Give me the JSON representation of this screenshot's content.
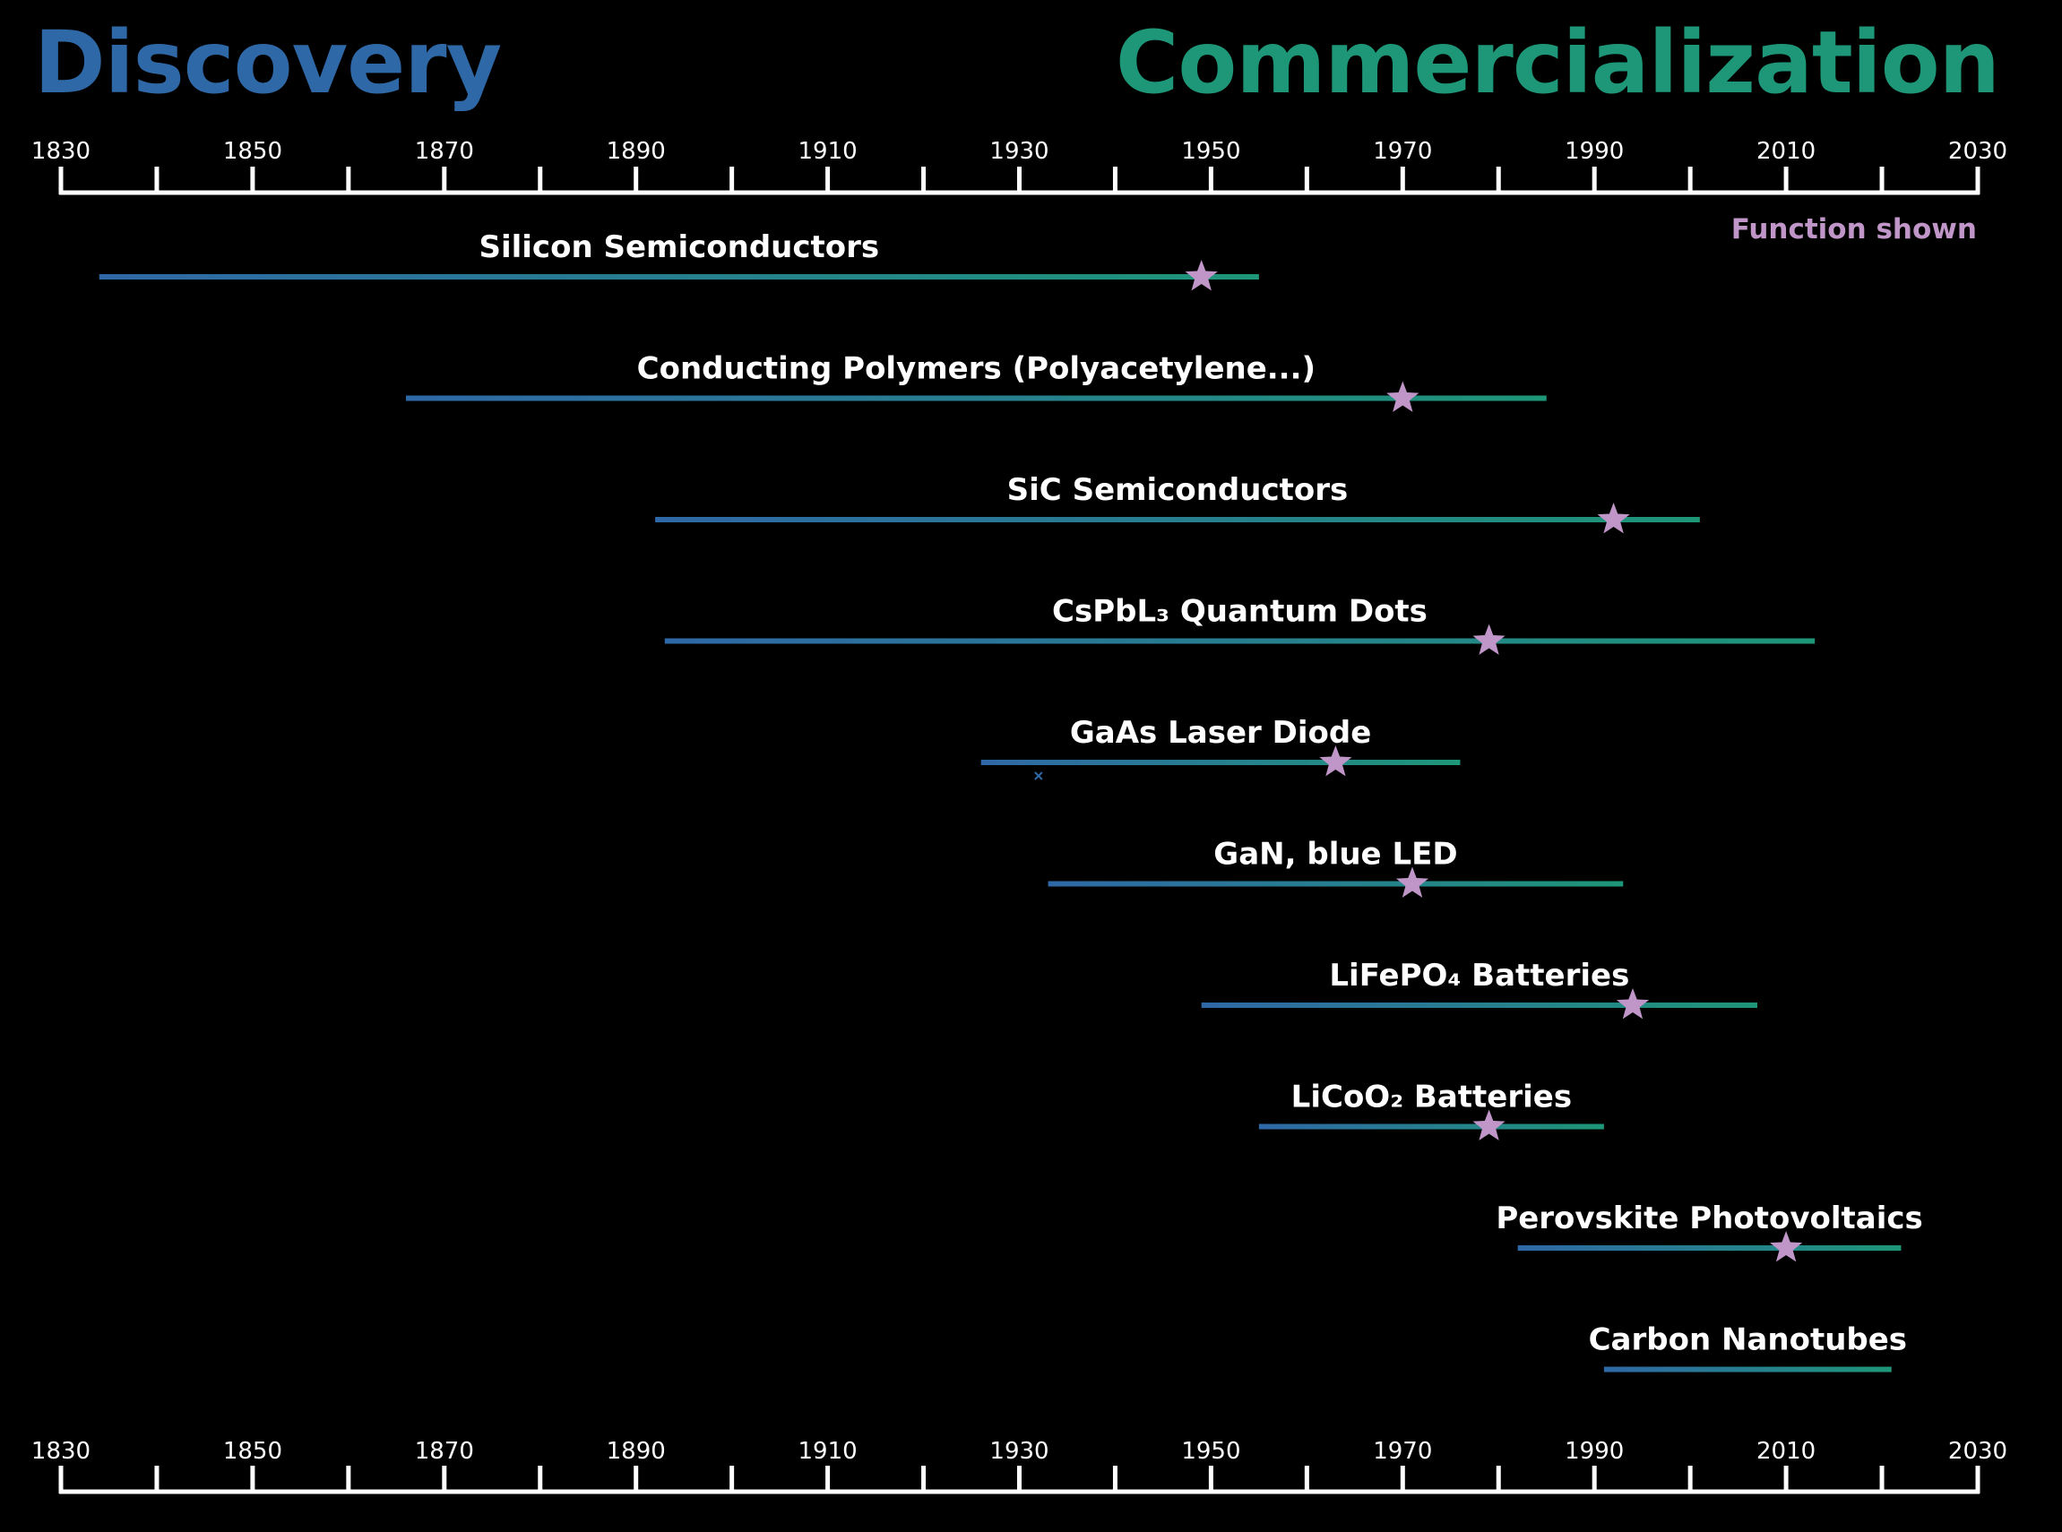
{
  "header": {
    "left_title": "Discovery",
    "right_title": "Commercialization"
  },
  "legend": {
    "function_label": "Function shown"
  },
  "colors": {
    "discovery": "#2f68a6",
    "commercialization": "#1e9678",
    "star": "#c096c8",
    "text": "#ffffff",
    "axis": "#ffffff"
  },
  "chart_data": {
    "type": "timeline",
    "xlim": [
      1830,
      2030
    ],
    "tick_labels": [
      "1830",
      "1850",
      "1870",
      "1890",
      "1910",
      "1930",
      "1950",
      "1970",
      "1990",
      "2010",
      "2030"
    ],
    "minor_ticks": [
      1840,
      1860,
      1880,
      1900,
      1920,
      1940,
      1960,
      1980,
      2000,
      2020
    ],
    "bars": [
      {
        "label": "Silicon Semiconductors",
        "start": 1834,
        "end": 1955,
        "star": 1949
      },
      {
        "label": "Conducting Polymers (Polyacetylene...)",
        "start": 1866,
        "end": 1985,
        "star": 1970
      },
      {
        "label": "SiC Semiconductors",
        "start": 1892,
        "end": 2001,
        "star": 1992
      },
      {
        "label": "CsPbL₃ Quantum Dots",
        "start": 1893,
        "end": 2013,
        "star": 1979
      },
      {
        "label": "GaAs Laser Diode",
        "start": 1926,
        "end": 1976,
        "star": 1963,
        "marker_x": 1932
      },
      {
        "label": "GaN, blue LED",
        "start": 1933,
        "end": 1993,
        "star": 1971
      },
      {
        "label": "LiFePO₄ Batteries",
        "start": 1949,
        "end": 2007,
        "star": 1994
      },
      {
        "label": "LiCoO₂ Batteries",
        "start": 1955,
        "end": 1991,
        "star": 1979
      },
      {
        "label": "Perovskite Photovoltaics",
        "start": 1982,
        "end": 2022,
        "star": 2010
      },
      {
        "label": "Carbon Nanotubes",
        "start": 1991,
        "end": 2021,
        "star": null
      }
    ]
  }
}
